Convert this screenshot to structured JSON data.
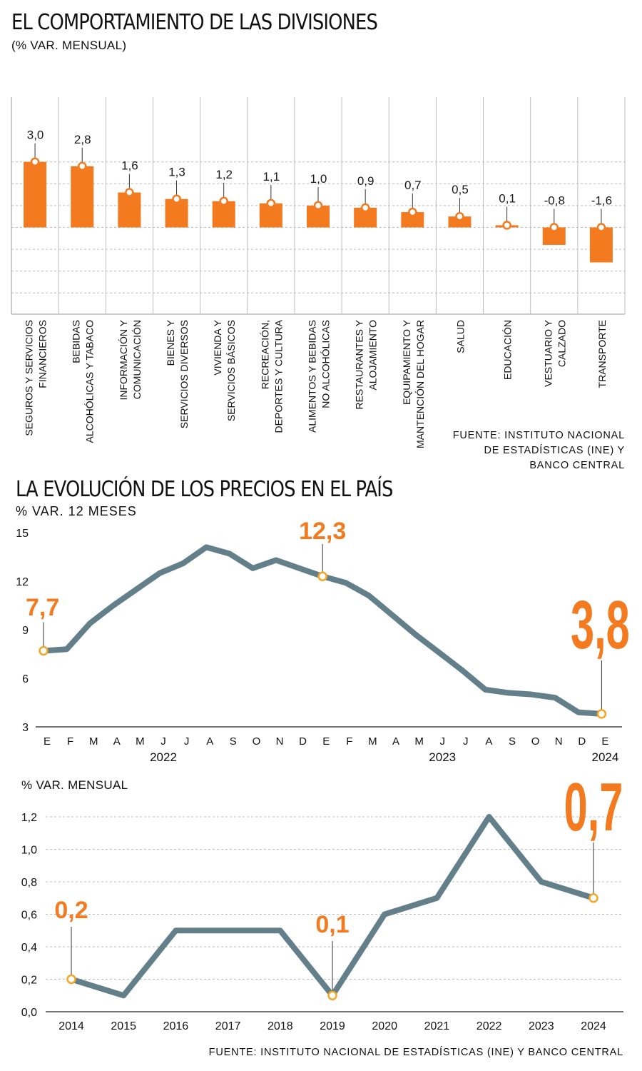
{
  "section1": {
    "title": "EL COMPORTAMIENTO DE LAS DIVISIONES",
    "subtitle": "(% VAR. MENSUAL)",
    "source_lines": [
      "FUENTE: INSTITUTO NACIONAL",
      "DE ESTADÍSTICAS (INE) Y",
      "BANCO CENTRAL"
    ]
  },
  "section2": {
    "title": "LA EVOLUCIÓN DE LOS PRECIOS EN EL PAÍS",
    "subtitle": "% VAR. 12 MESES"
  },
  "section3": {
    "subtitle": "% VAR. MENSUAL",
    "source": "FUENTE: INSTITUTO NACIONAL DE ESTADÍSTICAS (INE) Y BANCO CENTRAL"
  },
  "colors": {
    "accent": "#f47a20",
    "line": "#637f89",
    "grid": "#b5b5b5",
    "text": "#1a1a1a"
  },
  "chart_data": [
    {
      "type": "bar",
      "title": "EL COMPORTAMIENTO DE LAS DIVISIONES",
      "subtitle": "(% VAR. MENSUAL)",
      "categories": [
        [
          "SEGUROS Y SERVICIOS",
          "FINANCIEROS"
        ],
        [
          "BEBIDAS",
          "ALCOHÓLICAS Y TABACO"
        ],
        [
          "INFORMACIÓN Y",
          "COMUNICACIÓN"
        ],
        [
          "BIENES Y",
          "SERVICIOS DIVERSOS"
        ],
        [
          "VIVIENDA Y",
          "SERVICIOS BÁSICOS"
        ],
        [
          "RECREACIÓN,",
          "DEPORTES Y CULTURA"
        ],
        [
          "ALIMENTOS Y BEBIDAS",
          "NO ALCOHÓLICAS"
        ],
        [
          "RESTAURANTES Y",
          "ALOJAMIENTO"
        ],
        [
          "EQUIPAMIENTO Y",
          "MANTENCIÓN DEL HOGAR"
        ],
        [
          "SALUD"
        ],
        [
          "EDUCACIÓN"
        ],
        [
          "VESTUARIO Y",
          "CALZADO"
        ],
        [
          "TRANSPORTE"
        ]
      ],
      "values": [
        3.0,
        2.8,
        1.6,
        1.3,
        1.2,
        1.1,
        1.0,
        0.9,
        0.7,
        0.5,
        0.1,
        -0.8,
        -1.6
      ],
      "value_labels": [
        "3,0",
        "2,8",
        "1,6",
        "1,3",
        "1,2",
        "1,1",
        "1,0",
        "0,9",
        "0,7",
        "0,5",
        "0,1",
        "-0,8",
        "-1,6"
      ],
      "ylim": [
        -2,
        3
      ],
      "grid": true
    },
    {
      "type": "line",
      "subtitle": "% VAR. 12 MESES",
      "x": [
        "E",
        "F",
        "M",
        "A",
        "M",
        "J",
        "J",
        "A",
        "S",
        "O",
        "N",
        "D",
        "E",
        "F",
        "M",
        "A",
        "M",
        "J",
        "J",
        "A",
        "S",
        "O",
        "N",
        "D",
        "E"
      ],
      "year_labels": [
        {
          "label": "2022",
          "at_index": 5
        },
        {
          "label": "2023",
          "at_index": 17
        },
        {
          "label": "2024",
          "at_index": 24
        }
      ],
      "values": [
        7.7,
        7.8,
        9.4,
        10.5,
        11.5,
        12.5,
        13.1,
        14.1,
        13.7,
        12.8,
        13.3,
        12.8,
        12.3,
        11.9,
        11.1,
        9.9,
        8.7,
        7.6,
        6.5,
        5.3,
        5.1,
        5.0,
        4.8,
        3.9,
        3.8
      ],
      "y_ticks": [
        3,
        6,
        9,
        12,
        15
      ],
      "ylim": [
        3,
        15
      ],
      "highlights": [
        {
          "index": 0,
          "label": "7,7"
        },
        {
          "index": 12,
          "label": "12,3"
        },
        {
          "index": 24,
          "label": "3,8"
        }
      ]
    },
    {
      "type": "line",
      "subtitle": "% VAR. MENSUAL",
      "x": [
        "2014",
        "2015",
        "2016",
        "2017",
        "2018",
        "2019",
        "2020",
        "2021",
        "2022",
        "2023",
        "2024"
      ],
      "values": [
        0.2,
        0.1,
        0.5,
        0.5,
        0.5,
        0.1,
        0.6,
        0.7,
        1.2,
        0.8,
        0.7
      ],
      "y_ticks": [
        "0,0",
        "0,2",
        "0,4",
        "0,6",
        "0,8",
        "1,0",
        "1,2"
      ],
      "ylim": [
        0,
        1.2
      ],
      "highlights": [
        {
          "index": 0,
          "label": "0,2"
        },
        {
          "index": 5,
          "label": "0,1"
        },
        {
          "index": 10,
          "label": "0,7"
        }
      ]
    }
  ]
}
